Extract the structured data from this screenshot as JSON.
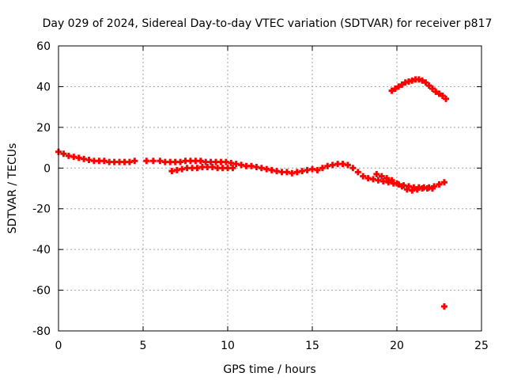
{
  "chart_data": {
    "type": "scatter",
    "title": "Day 029 of 2024, Sidereal Day-to-day VTEC variation (SDTVAR) for receiver p817",
    "xlabel": "GPS time / hours",
    "ylabel": "SDTVAR / TECUs",
    "xlim": [
      0,
      25
    ],
    "ylim": [
      -80,
      60
    ],
    "xticks": [
      0,
      5,
      10,
      15,
      20,
      25
    ],
    "yticks": [
      -80,
      -60,
      -40,
      -20,
      0,
      20,
      40,
      60
    ],
    "grid": true,
    "legend": "none",
    "marker": "plus",
    "colors": {
      "series": "#ff0000",
      "grid": "#a0a0a0",
      "axis": "#000000"
    },
    "series": [
      {
        "name": "main-trace",
        "x": [
          0.0,
          0.3,
          0.6,
          0.9,
          1.2,
          1.5,
          1.8,
          2.1,
          2.4,
          2.7,
          3.0,
          3.3,
          3.6,
          3.9,
          4.2,
          4.5,
          5.2,
          5.6,
          6.0,
          6.3,
          6.6,
          6.9,
          7.2,
          7.5,
          7.8,
          8.1,
          8.4,
          8.7,
          9.0,
          9.3,
          9.6,
          9.9,
          10.2,
          10.5,
          10.8,
          11.1,
          11.4,
          11.7,
          12.0,
          12.3,
          12.6,
          12.9,
          13.2,
          13.5,
          13.8,
          14.1,
          14.4,
          14.7,
          15.0,
          15.3,
          15.6,
          15.9,
          16.2,
          16.5,
          16.8,
          17.1,
          17.4,
          17.7,
          18.0,
          18.3,
          18.6,
          18.9,
          19.2,
          19.5,
          19.8,
          20.1,
          20.4,
          20.7,
          21.0,
          21.3,
          21.6,
          21.9,
          22.2,
          22.5,
          22.8
        ],
        "y": [
          8,
          7,
          6,
          5.5,
          5,
          4.5,
          4,
          3.5,
          3.5,
          3.5,
          3,
          3,
          3,
          3,
          3,
          3.5,
          3.5,
          3.5,
          3.5,
          3,
          3,
          3,
          3,
          3.5,
          3.5,
          3.5,
          3.5,
          3,
          3,
          3,
          3,
          3,
          2.5,
          2,
          1.5,
          1,
          1,
          0.5,
          0,
          -0.5,
          -1,
          -1.5,
          -2,
          -2,
          -2.5,
          -2,
          -1.5,
          -1,
          -0.5,
          -1,
          0,
          1,
          1.5,
          2,
          2,
          1.5,
          0,
          -2,
          -4,
          -5,
          -5.5,
          -6,
          -6.5,
          -7,
          -7.5,
          -8,
          -8.5,
          -9,
          -9.5,
          -9.5,
          -9.5,
          -9.5,
          -9,
          -8,
          -7
        ]
      },
      {
        "name": "lower-branch",
        "x": [
          6.7,
          7.0,
          7.3,
          7.6,
          7.9,
          8.2,
          8.5,
          8.8,
          9.1,
          9.4,
          9.7,
          10.0,
          10.3,
          18.8,
          19.1,
          19.4,
          19.7,
          20.0,
          20.3,
          20.6,
          20.9,
          21.2,
          21.5,
          21.8,
          22.1
        ],
        "y": [
          -1.5,
          -1,
          -0.5,
          0,
          0,
          0,
          0.5,
          0.5,
          0.5,
          0,
          0,
          0,
          0,
          -3,
          -4,
          -5,
          -6,
          -7.5,
          -9,
          -10.5,
          -11,
          -10.5,
          -10,
          -10,
          -10
        ]
      },
      {
        "name": "upper-arc",
        "x": [
          19.7,
          19.9,
          20.1,
          20.3,
          20.5,
          20.7,
          20.9,
          21.1,
          21.3,
          21.5,
          21.7,
          21.9,
          22.1,
          22.3,
          22.5,
          22.7,
          22.9
        ],
        "y": [
          38,
          39,
          40,
          41,
          42,
          42.5,
          43,
          43.5,
          43.5,
          43,
          42,
          40.5,
          39,
          37.5,
          36.5,
          35.5,
          34
        ]
      },
      {
        "name": "outlier",
        "x": [
          22.8
        ],
        "y": [
          -68
        ]
      }
    ]
  }
}
